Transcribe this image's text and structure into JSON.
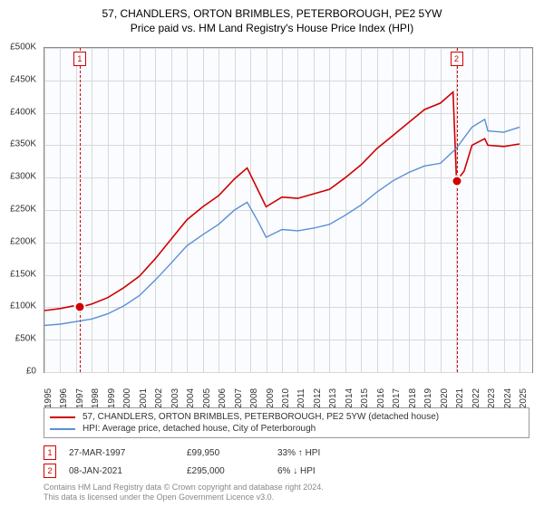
{
  "titles": {
    "main": "57, CHANDLERS, ORTON BRIMBLES, PETERBOROUGH, PE2 5YW",
    "sub": "Price paid vs. HM Land Registry's House Price Index (HPI)"
  },
  "chart": {
    "type": "line",
    "background_color": "#fafcff",
    "grid_color": "#d8d8d8",
    "xlim": [
      1995,
      2025.8
    ],
    "ylim": [
      0,
      500
    ],
    "y_ticks": [
      0,
      50,
      100,
      150,
      200,
      250,
      300,
      350,
      400,
      450,
      500
    ],
    "y_tick_labels": [
      "£0",
      "£50K",
      "£100K",
      "£150K",
      "£200K",
      "£250K",
      "£300K",
      "£350K",
      "£400K",
      "£450K",
      "£500K"
    ],
    "x_ticks": [
      1995,
      1996,
      1997,
      1998,
      1999,
      2000,
      2001,
      2002,
      2003,
      2004,
      2005,
      2006,
      2007,
      2008,
      2009,
      2010,
      2011,
      2012,
      2013,
      2014,
      2015,
      2016,
      2017,
      2018,
      2019,
      2020,
      2021,
      2022,
      2023,
      2024,
      2025
    ],
    "x_tick_labels": [
      "1995",
      "1996",
      "1997",
      "1998",
      "1999",
      "2000",
      "2001",
      "2002",
      "2003",
      "2004",
      "2005",
      "2006",
      "2007",
      "2008",
      "2009",
      "2010",
      "2011",
      "2012",
      "2013",
      "2014",
      "2015",
      "2016",
      "2017",
      "2018",
      "2019",
      "2020",
      "2021",
      "2022",
      "2023",
      "2024",
      "2025"
    ],
    "series": [
      {
        "name": "property",
        "color": "#d00000",
        "line_width": 1.6,
        "label": "57, CHANDLERS, ORTON BRIMBLES, PETERBOROUGH, PE2 5YW (detached house)",
        "data": [
          [
            1995,
            95
          ],
          [
            1996,
            98
          ],
          [
            1996.8,
            102
          ],
          [
            1997.23,
            100
          ],
          [
            1998,
            105
          ],
          [
            1999,
            115
          ],
          [
            2000,
            130
          ],
          [
            2001,
            148
          ],
          [
            2002,
            175
          ],
          [
            2003,
            205
          ],
          [
            2004,
            235
          ],
          [
            2005,
            255
          ],
          [
            2006,
            272
          ],
          [
            2007,
            298
          ],
          [
            2007.8,
            315
          ],
          [
            2008.5,
            280
          ],
          [
            2009,
            255
          ],
          [
            2010,
            270
          ],
          [
            2011,
            268
          ],
          [
            2012,
            275
          ],
          [
            2013,
            282
          ],
          [
            2014,
            300
          ],
          [
            2015,
            320
          ],
          [
            2016,
            345
          ],
          [
            2017,
            365
          ],
          [
            2018,
            385
          ],
          [
            2019,
            405
          ],
          [
            2020,
            415
          ],
          [
            2020.8,
            432
          ],
          [
            2021.02,
            295
          ],
          [
            2021.5,
            310
          ],
          [
            2022,
            350
          ],
          [
            2022.8,
            360
          ],
          [
            2023,
            350
          ],
          [
            2024,
            348
          ],
          [
            2025,
            352
          ]
        ]
      },
      {
        "name": "hpi",
        "color": "#5a8fd6",
        "line_width": 1.4,
        "label": "HPI: Average price, detached house, City of Peterborough",
        "data": [
          [
            1995,
            72
          ],
          [
            1996,
            74
          ],
          [
            1997,
            78
          ],
          [
            1998,
            82
          ],
          [
            1999,
            90
          ],
          [
            2000,
            102
          ],
          [
            2001,
            118
          ],
          [
            2002,
            142
          ],
          [
            2003,
            168
          ],
          [
            2004,
            195
          ],
          [
            2005,
            212
          ],
          [
            2006,
            228
          ],
          [
            2007,
            250
          ],
          [
            2007.8,
            262
          ],
          [
            2008.5,
            232
          ],
          [
            2009,
            208
          ],
          [
            2010,
            220
          ],
          [
            2011,
            218
          ],
          [
            2012,
            222
          ],
          [
            2013,
            228
          ],
          [
            2014,
            242
          ],
          [
            2015,
            258
          ],
          [
            2016,
            278
          ],
          [
            2017,
            295
          ],
          [
            2018,
            308
          ],
          [
            2019,
            318
          ],
          [
            2020,
            322
          ],
          [
            2021,
            345
          ],
          [
            2022,
            378
          ],
          [
            2022.8,
            390
          ],
          [
            2023,
            372
          ],
          [
            2024,
            370
          ],
          [
            2025,
            378
          ]
        ]
      }
    ],
    "markers": [
      {
        "id": "1",
        "x": 1997.23,
        "y": 100,
        "dot_color": "#d00000",
        "box_color": "#d00000"
      },
      {
        "id": "2",
        "x": 2021.02,
        "y": 295,
        "dot_color": "#d00000",
        "box_color": "#d00000"
      }
    ]
  },
  "transactions": [
    {
      "id": "1",
      "date": "27-MAR-1997",
      "price": "£99,950",
      "pct": "33% ↑ HPI",
      "color": "#d00000"
    },
    {
      "id": "2",
      "date": "08-JAN-2021",
      "price": "£295,000",
      "pct": "6% ↓ HPI",
      "color": "#d00000"
    }
  ],
  "footnote": {
    "line1": "Contains HM Land Registry data © Crown copyright and database right 2024.",
    "line2": "This data is licensed under the Open Government Licence v3.0."
  }
}
